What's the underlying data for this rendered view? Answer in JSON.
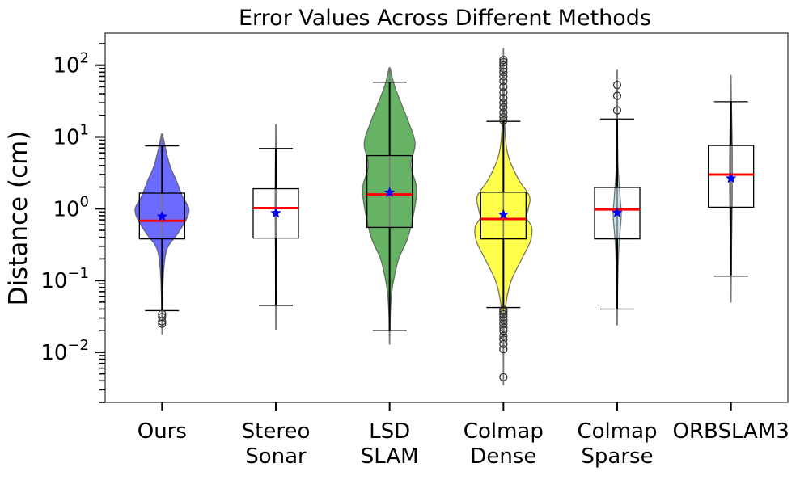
{
  "chart_data": {
    "type": "box+violin",
    "title": "Error Values Across Different Methods",
    "xlabel": "",
    "ylabel": "Distance (cm)",
    "yscale": "log",
    "ylim": [
      0.002,
      280
    ],
    "grid": false,
    "legend": "none",
    "yticks": [
      {
        "value": 0.01,
        "base": "10",
        "exp": "−2"
      },
      {
        "value": 0.1,
        "base": "10",
        "exp": "−1"
      },
      {
        "value": 1,
        "base": "10",
        "exp": "0"
      },
      {
        "value": 10,
        "base": "10",
        "exp": "1"
      },
      {
        "value": 100,
        "base": "10",
        "exp": "2"
      }
    ],
    "categories": [
      {
        "lines": [
          "Ours"
        ]
      },
      {
        "lines": [
          "Stereo",
          "Sonar"
        ]
      },
      {
        "lines": [
          "LSD",
          "SLAM"
        ]
      },
      {
        "lines": [
          "Colmap",
          "Dense"
        ]
      },
      {
        "lines": [
          "Colmap",
          "Sparse"
        ]
      },
      {
        "lines": [
          "ORBSLAM3"
        ]
      }
    ],
    "series": [
      {
        "name": "Ours",
        "q1": 0.38,
        "median": 0.68,
        "q3": 1.65,
        "mean": 0.78,
        "whisker_low": 0.038,
        "whisker_high": 7.5,
        "outliers": [
          0.025,
          0.027,
          0.031,
          0.034
        ],
        "violin": {
          "color": "#0000ff",
          "opacity": 0.58,
          "min": 0.018,
          "max": 11,
          "profile": [
            [
              0.018,
              0.003
            ],
            [
              0.04,
              0.012
            ],
            [
              0.1,
              0.04
            ],
            [
              0.2,
              0.1
            ],
            [
              0.3,
              0.22
            ],
            [
              0.45,
              0.55
            ],
            [
              0.7,
              0.85
            ],
            [
              1.0,
              0.95
            ],
            [
              1.5,
              0.72
            ],
            [
              2.5,
              0.5
            ],
            [
              4,
              0.28
            ],
            [
              7,
              0.12
            ],
            [
              11,
              0.02
            ]
          ]
        }
      },
      {
        "name": "Stereo Sonar",
        "q1": 0.39,
        "median": 1.02,
        "q3": 1.9,
        "mean": 0.87,
        "whisker_low": 0.045,
        "whisker_high": 6.9,
        "outliers": [],
        "violin": {
          "color": "#add8e6",
          "opacity": 0.7,
          "min": 0.021,
          "max": 15,
          "profile": [
            [
              0.021,
              0.004
            ],
            [
              0.1,
              0.01
            ],
            [
              0.5,
              0.02
            ],
            [
              1,
              0.025
            ],
            [
              3,
              0.02
            ],
            [
              15,
              0.004
            ]
          ]
        }
      },
      {
        "name": "LSD SLAM",
        "q1": 0.55,
        "median": 1.58,
        "q3": 5.5,
        "mean": 1.68,
        "whisker_low": 0.02,
        "whisker_high": 58,
        "outliers": [],
        "violin": {
          "color": "#008000",
          "opacity": 0.6,
          "min": 0.013,
          "max": 92,
          "profile": [
            [
              0.013,
              0.005
            ],
            [
              0.03,
              0.02
            ],
            [
              0.06,
              0.06
            ],
            [
              0.1,
              0.14
            ],
            [
              0.2,
              0.32
            ],
            [
              0.4,
              0.65
            ],
            [
              1.0,
              0.88
            ],
            [
              2.0,
              0.95
            ],
            [
              4,
              0.75
            ],
            [
              8,
              0.9
            ],
            [
              15,
              0.7
            ],
            [
              30,
              0.4
            ],
            [
              55,
              0.15
            ],
            [
              92,
              0.02
            ]
          ]
        }
      },
      {
        "name": "Colmap Dense",
        "q1": 0.38,
        "median": 0.72,
        "q3": 1.7,
        "mean": 0.83,
        "whisker_low": 0.042,
        "whisker_high": 16.5,
        "outliers": [
          0.0045,
          0.011,
          0.013,
          0.015,
          0.017,
          0.02,
          0.022,
          0.025,
          0.028,
          0.031,
          0.034,
          0.037,
          0.039,
          17,
          19,
          22,
          26,
          30,
          35,
          42,
          50,
          60,
          70,
          80,
          90,
          100,
          110,
          118
        ],
        "violin": {
          "color": "#ffff00",
          "opacity": 0.7,
          "min": 0.0035,
          "max": 170,
          "profile": [
            [
              0.0035,
              0.004
            ],
            [
              0.02,
              0.02
            ],
            [
              0.05,
              0.1
            ],
            [
              0.1,
              0.28
            ],
            [
              0.2,
              0.65
            ],
            [
              0.35,
              0.95
            ],
            [
              0.55,
              1.0
            ],
            [
              0.75,
              0.82
            ],
            [
              1.0,
              0.88
            ],
            [
              1.5,
              0.92
            ],
            [
              2.5,
              0.55
            ],
            [
              5,
              0.2
            ],
            [
              10,
              0.07
            ],
            [
              30,
              0.03
            ],
            [
              170,
              0.005
            ]
          ]
        }
      },
      {
        "name": "Colmap Sparse",
        "q1": 0.38,
        "median": 0.98,
        "q3": 1.98,
        "mean": 0.88,
        "whisker_low": 0.04,
        "whisker_high": 17.8,
        "outliers": [
          23.5,
          37.5,
          53
        ],
        "violin": {
          "color": "#add8e6",
          "opacity": 0.7,
          "min": 0.024,
          "max": 85,
          "profile": [
            [
              0.024,
              0.004
            ],
            [
              0.1,
              0.02
            ],
            [
              0.3,
              0.06
            ],
            [
              0.8,
              0.14
            ],
            [
              1.5,
              0.1
            ],
            [
              4,
              0.03
            ],
            [
              15,
              0.012
            ],
            [
              85,
              0.004
            ]
          ]
        }
      },
      {
        "name": "ORBSLAM3",
        "q1": 1.05,
        "median": 3.0,
        "q3": 7.6,
        "mean": 2.65,
        "whisker_low": 0.115,
        "whisker_high": 31,
        "outliers": [],
        "violin": {
          "color": "#ffb6c1",
          "opacity": 0.7,
          "min": 0.05,
          "max": 72,
          "profile": [
            [
              0.05,
              0.004
            ],
            [
              0.3,
              0.02
            ],
            [
              1,
              0.04
            ],
            [
              3,
              0.05
            ],
            [
              10,
              0.04
            ],
            [
              30,
              0.015
            ],
            [
              72,
              0.004
            ]
          ]
        }
      }
    ]
  }
}
